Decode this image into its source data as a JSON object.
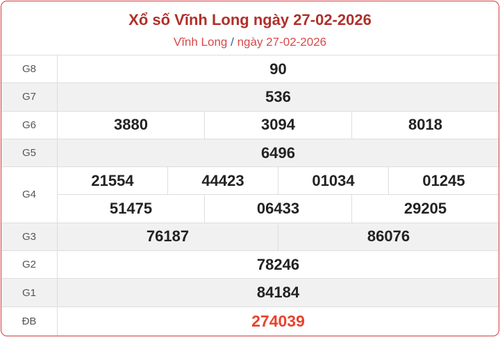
{
  "header": {
    "title": "Xổ số Vĩnh Long ngày 27-02-2026",
    "breadcrumb_place": "Vĩnh Long",
    "breadcrumb_sep": "/",
    "breadcrumb_date": "ngày 27-02-2026"
  },
  "prizes": [
    {
      "label": "G8",
      "lines": [
        [
          "90"
        ]
      ]
    },
    {
      "label": "G7",
      "lines": [
        [
          "536"
        ]
      ]
    },
    {
      "label": "G6",
      "lines": [
        [
          "3880",
          "3094",
          "8018"
        ]
      ]
    },
    {
      "label": "G5",
      "lines": [
        [
          "6496"
        ]
      ]
    },
    {
      "label": "G4",
      "lines": [
        [
          "21554",
          "44423",
          "01034",
          "01245"
        ],
        [
          "51475",
          "06433",
          "29205"
        ]
      ]
    },
    {
      "label": "G3",
      "lines": [
        [
          "76187",
          "86076"
        ]
      ]
    },
    {
      "label": "G2",
      "lines": [
        [
          "78246"
        ]
      ]
    },
    {
      "label": "G1",
      "lines": [
        [
          "84184"
        ]
      ]
    },
    {
      "label": "ĐB",
      "lines": [
        [
          "274039"
        ]
      ]
    }
  ],
  "colors": {
    "title": "#b0302a",
    "special": "#e8432e",
    "border": "#d9383a"
  }
}
